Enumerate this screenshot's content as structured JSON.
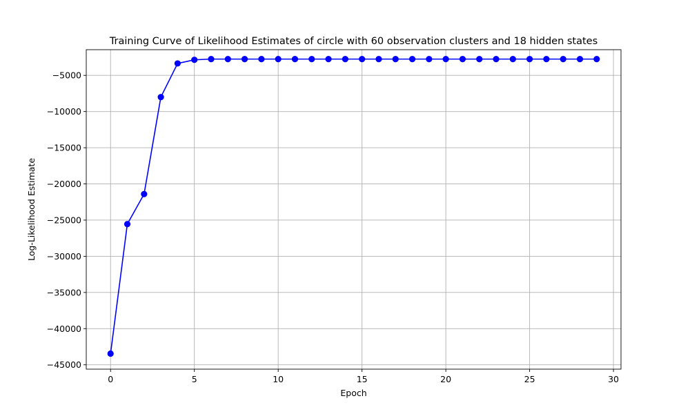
{
  "chart_data": {
    "type": "line",
    "title": "Training Curve of Likelihood Estimates of circle with 60 observation clusters and 18 hidden states",
    "xlabel": "Epoch",
    "ylabel": "Log-Likelihood Estimate",
    "xlim": [
      -1.45,
      30.45
    ],
    "ylim": [
      -45600,
      -1450
    ],
    "xticks": [
      0,
      5,
      10,
      15,
      20,
      25,
      30
    ],
    "xtick_labels": [
      "0",
      "5",
      "10",
      "15",
      "20",
      "25",
      "30"
    ],
    "yticks": [
      -45000,
      -40000,
      -35000,
      -30000,
      -25000,
      -20000,
      -15000,
      -10000,
      -5000
    ],
    "ytick_labels": [
      "−45000",
      "−40000",
      "−35000",
      "−30000",
      "−25000",
      "−20000",
      "−15000",
      "−10000",
      "−5000"
    ],
    "grid": true,
    "series": [
      {
        "color": "#0000ff",
        "marker": "circle",
        "x": [
          0,
          1,
          2,
          3,
          4,
          5,
          6,
          7,
          8,
          9,
          10,
          11,
          12,
          13,
          14,
          15,
          16,
          17,
          18,
          19,
          20,
          21,
          22,
          23,
          24,
          25,
          26,
          27,
          28,
          29
        ],
        "y": [
          -43450,
          -25550,
          -21400,
          -8000,
          -3350,
          -2850,
          -2750,
          -2750,
          -2750,
          -2750,
          -2750,
          -2750,
          -2750,
          -2750,
          -2750,
          -2750,
          -2750,
          -2750,
          -2750,
          -2750,
          -2750,
          -2750,
          -2750,
          -2750,
          -2750,
          -2750,
          -2750,
          -2750,
          -2750,
          -2750
        ]
      }
    ]
  }
}
